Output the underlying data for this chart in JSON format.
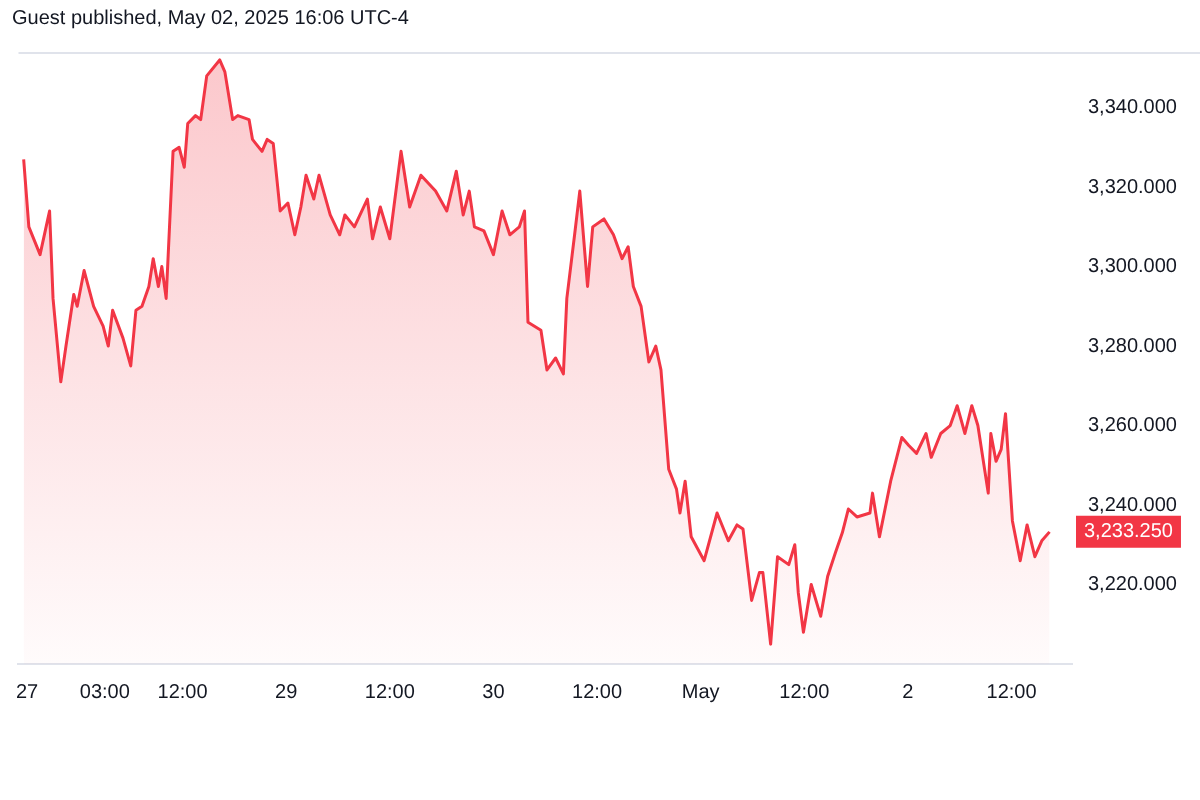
{
  "chart_data": {
    "type": "area",
    "annotations": [
      "Guest published, May 02, 2025 16:06 UTC-4",
      {
        "text": "3,233.250",
        "x": "2025-05-02T16:24",
        "y": 3233.25
      }
    ],
    "xlim": [
      "2025-04-27T17:00",
      "2025-05-02T19:00"
    ],
    "xticks": [
      {
        "value": "2025-04-27T18:00",
        "label": "27"
      },
      {
        "value": "2025-04-28T03:00",
        "label": "03:00"
      },
      {
        "value": "2025-04-28T12:00",
        "label": "12:00"
      },
      {
        "value": "2025-04-29T00:00",
        "label": "29"
      },
      {
        "value": "2025-04-29T12:00",
        "label": "12:00"
      },
      {
        "value": "2025-04-30T00:00",
        "label": "30"
      },
      {
        "value": "2025-04-30T12:00",
        "label": "12:00"
      },
      {
        "value": "2025-05-01T00:00",
        "label": "May"
      },
      {
        "value": "2025-05-01T12:00",
        "label": "12:00"
      },
      {
        "value": "2025-05-02T00:00",
        "label": "2"
      },
      {
        "value": "2025-05-02T12:00",
        "label": "12:00"
      }
    ],
    "ylim": [
      3200,
      3354
    ],
    "yticks": [
      {
        "value": 3220,
        "label": "3,220.000"
      },
      {
        "value": 3240,
        "label": "3,240.000"
      },
      {
        "value": 3260,
        "label": "3,260.000"
      },
      {
        "value": 3280,
        "label": "3,280.000"
      },
      {
        "value": 3300,
        "label": "3,300.000"
      },
      {
        "value": 3320,
        "label": "3,320.000"
      },
      {
        "value": 3340,
        "label": "3,340.000"
      }
    ],
    "grid": false,
    "legend": false,
    "marker": "none",
    "line_style": "solid",
    "series": [
      {
        "color": "#f23645",
        "x": [
          "2025-04-27T17:36",
          "2025-04-27T18:12",
          "2025-04-27T19:30",
          "2025-04-27T20:24",
          "2025-04-27T20:36",
          "2025-04-27T21:00",
          "2025-04-27T21:54",
          "2025-04-27T22:30",
          "2025-04-27T23:24",
          "2025-04-27T23:48",
          "2025-04-28T00:36",
          "2025-04-28T01:42",
          "2025-04-28T02:48",
          "2025-04-28T03:24",
          "2025-04-28T03:54",
          "2025-04-28T05:06",
          "2025-04-28T06:00",
          "2025-04-28T06:36",
          "2025-04-28T07:18",
          "2025-04-28T08:06",
          "2025-04-28T08:36",
          "2025-04-28T09:12",
          "2025-04-28T09:36",
          "2025-04-28T10:06",
          "2025-04-28T10:54",
          "2025-04-28T11:36",
          "2025-04-28T12:12",
          "2025-04-28T12:36",
          "2025-04-28T13:30",
          "2025-04-28T14:06",
          "2025-04-28T14:48",
          "2025-04-28T16:18",
          "2025-04-28T16:54",
          "2025-04-28T17:48",
          "2025-04-28T18:24",
          "2025-04-28T19:42",
          "2025-04-28T20:06",
          "2025-04-28T21:12",
          "2025-04-28T21:48",
          "2025-04-28T22:30",
          "2025-04-28T23:18",
          "2025-04-29T00:12",
          "2025-04-29T01:00",
          "2025-04-29T01:42",
          "2025-04-29T02:18",
          "2025-04-29T03:12",
          "2025-04-29T03:48",
          "2025-04-29T05:06",
          "2025-04-29T06:12",
          "2025-04-29T06:48",
          "2025-04-29T07:54",
          "2025-04-29T09:24",
          "2025-04-29T10:00",
          "2025-04-29T10:54",
          "2025-04-29T12:00",
          "2025-04-29T13:18",
          "2025-04-29T14:18",
          "2025-04-29T15:36",
          "2025-04-29T17:18",
          "2025-04-29T18:36",
          "2025-04-29T19:42",
          "2025-04-29T20:30",
          "2025-04-29T21:12",
          "2025-04-29T21:48",
          "2025-04-29T22:54",
          "2025-04-30T00:00",
          "2025-04-30T01:00",
          "2025-04-30T01:54",
          "2025-04-30T03:00",
          "2025-04-30T03:36",
          "2025-04-30T04:00",
          "2025-04-30T05:30",
          "2025-04-30T06:12",
          "2025-04-30T07:12",
          "2025-04-30T08:06",
          "2025-04-30T08:30",
          "2025-04-30T09:24",
          "2025-04-30T10:00",
          "2025-04-30T10:54",
          "2025-04-30T11:30",
          "2025-04-30T12:48",
          "2025-04-30T13:54",
          "2025-04-30T14:54",
          "2025-04-30T15:36",
          "2025-04-30T16:12",
          "2025-04-30T17:06",
          "2025-04-30T18:00",
          "2025-04-30T18:48",
          "2025-04-30T19:24",
          "2025-04-30T20:18",
          "2025-04-30T21:12",
          "2025-04-30T21:36",
          "2025-04-30T22:12",
          "2025-04-30T22:54",
          "2025-05-01T00:24",
          "2025-05-01T01:54",
          "2025-05-01T03:12",
          "2025-05-01T04:12",
          "2025-05-01T04:54",
          "2025-05-01T05:54",
          "2025-05-01T06:48",
          "2025-05-01T07:12",
          "2025-05-01T08:06",
          "2025-05-01T08:54",
          "2025-05-01T10:12",
          "2025-05-01T10:54",
          "2025-05-01T11:18",
          "2025-05-01T11:54",
          "2025-05-01T12:48",
          "2025-05-01T13:54",
          "2025-05-01T14:42",
          "2025-05-01T15:36",
          "2025-05-01T16:24",
          "2025-05-01T17:06",
          "2025-05-01T18:06",
          "2025-05-01T19:36",
          "2025-05-01T19:54",
          "2025-05-01T20:42",
          "2025-05-01T22:00",
          "2025-05-01T23:18",
          "2025-05-02T00:06",
          "2025-05-02T01:00",
          "2025-05-02T02:06",
          "2025-05-02T02:42",
          "2025-05-02T03:48",
          "2025-05-02T04:54",
          "2025-05-02T05:42",
          "2025-05-02T06:36",
          "2025-05-02T07:24",
          "2025-05-02T08:06",
          "2025-05-02T09:18",
          "2025-05-02T09:36",
          "2025-05-02T10:12",
          "2025-05-02T10:48",
          "2025-05-02T11:18",
          "2025-05-02T12:06",
          "2025-05-02T13:00",
          "2025-05-02T13:48",
          "2025-05-02T14:42",
          "2025-05-02T15:30",
          "2025-05-02T16:24"
        ],
        "values": [
          3327,
          3310,
          3303,
          3312,
          3314,
          3292,
          3271,
          3280,
          3293,
          3290,
          3299,
          3290,
          3285,
          3280,
          3289,
          3282,
          3275,
          3289,
          3290,
          3295,
          3302,
          3295,
          3300,
          3292,
          3329,
          3330,
          3325,
          3336,
          3338,
          3337,
          3348,
          3352,
          3349,
          3337,
          3338,
          3337,
          3332,
          3329,
          3332,
          3331,
          3314,
          3316,
          3308,
          3315,
          3323,
          3317,
          3323,
          3313,
          3308,
          3313,
          3310,
          3317,
          3307,
          3315,
          3307,
          3329,
          3315,
          3323,
          3319,
          3314,
          3324,
          3313,
          3319,
          3310,
          3309,
          3303,
          3314,
          3308,
          3310,
          3314,
          3286,
          3284,
          3274,
          3277,
          3273,
          3292,
          3308,
          3319,
          3295,
          3310,
          3312,
          3308,
          3302,
          3305,
          3295,
          3290,
          3276,
          3280,
          3274,
          3249,
          3244,
          3238,
          3246,
          3232,
          3226,
          3238,
          3231,
          3235,
          3234,
          3216,
          3223,
          3223,
          3205,
          3227,
          3225,
          3230,
          3218,
          3208,
          3220,
          3212,
          3222,
          3228,
          3233,
          3239,
          3237,
          3238,
          3243,
          3232,
          3246,
          3257,
          3255,
          3253,
          3258,
          3252,
          3258,
          3260,
          3265,
          3258,
          3265,
          3260,
          3243,
          3258,
          3251,
          3254,
          3263,
          3236,
          3226,
          3235,
          3227,
          3231,
          3233.25
        ]
      }
    ]
  }
}
